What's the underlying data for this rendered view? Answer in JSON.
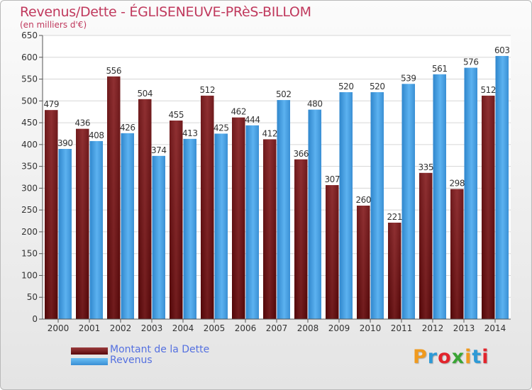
{
  "title": "Revenus/Dette - ÉGLISENEUVE-PRèS-BILLOM",
  "subtitle": "(en milliers d'€)",
  "legend": [
    {
      "label": "Montant de la Dette",
      "color": "#7a1a1d"
    },
    {
      "label": "Revenus",
      "color": "#4aa6ea"
    }
  ],
  "logo": {
    "letters": [
      "P",
      "r",
      "o",
      "x",
      "i",
      "t",
      "i"
    ],
    "colors": [
      "#f09a1e",
      "#2e9ad6",
      "#e2242c",
      "#3aa535",
      "#f09a1e",
      "#2e9ad6",
      "#e2242c"
    ]
  },
  "chart_data": {
    "type": "bar",
    "title": "Revenus/Dette - ÉGLISENEUVE-PRèS-BILLOM",
    "ylabel": "(en milliers d'€)",
    "categories": [
      "2000",
      "2001",
      "2002",
      "2003",
      "2004",
      "2005",
      "2006",
      "2007",
      "2008",
      "2009",
      "2010",
      "2011",
      "2012",
      "2013",
      "2014"
    ],
    "series": [
      {
        "name": "Montant de la Dette",
        "color": "#7a1a1d",
        "values": [
          479,
          436,
          556,
          504,
          455,
          512,
          462,
          412,
          366,
          307,
          260,
          221,
          335,
          298,
          512
        ]
      },
      {
        "name": "Revenus",
        "color": "#4aa6ea",
        "values": [
          390,
          408,
          426,
          374,
          413,
          425,
          444,
          502,
          480,
          520,
          520,
          539,
          561,
          576,
          603
        ]
      }
    ],
    "ylim": [
      0,
      650
    ],
    "yticks": [
      0,
      50,
      100,
      150,
      200,
      250,
      300,
      350,
      400,
      450,
      500,
      550,
      600,
      650
    ],
    "grid": true,
    "legend_position": "bottom-left"
  }
}
